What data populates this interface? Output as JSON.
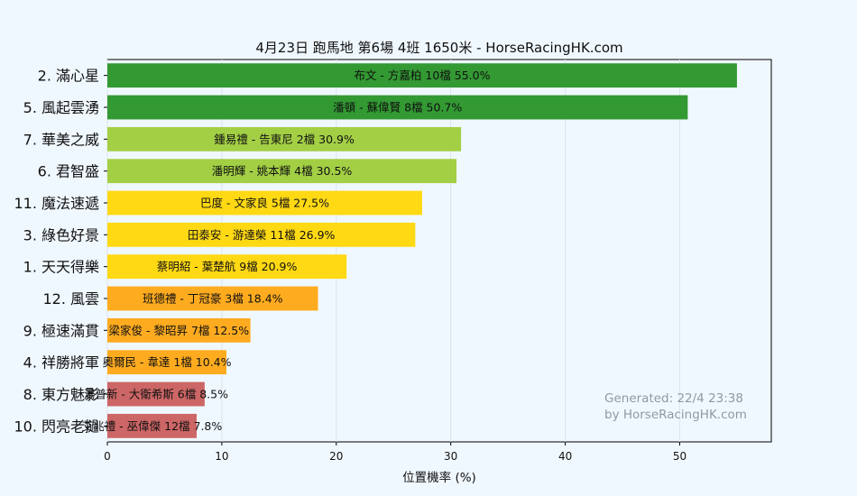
{
  "chart_data": {
    "type": "bar",
    "orientation": "horizontal",
    "title": "4月23日  跑馬地  第6場  4班  1650米 - HorseRacingHK.com",
    "xlabel": "位置機率 (%)",
    "ylabel": "",
    "xlim": [
      0,
      58
    ],
    "xticks": [
      0,
      10,
      20,
      30,
      40,
      50
    ],
    "grid": "vertical",
    "categories": [
      "2. 滿心星",
      "5. 風起雲湧",
      "7. 華美之威",
      "6. 君智盛",
      "11. 魔法速遞",
      "3. 綠色好景",
      "1. 天天得樂",
      "12. 風雲",
      "9. 極速滿貫",
      "4. 祥勝將軍",
      "8. 東方魅影",
      "10. 閃亮老撾"
    ],
    "values": [
      55.0,
      50.7,
      30.9,
      30.5,
      27.5,
      26.9,
      20.9,
      18.4,
      12.5,
      10.4,
      8.5,
      7.8
    ],
    "bar_labels": [
      "布文 - 方嘉柏 10檔  55.0%",
      "潘頓 - 蘇偉賢 8檔  50.7%",
      "鍾易禮 - 告東尼 2檔  30.9%",
      "潘明輝 - 姚本輝 4檔  30.5%",
      "巴度 - 文家良 5檔  27.5%",
      "田泰安 - 游達榮 11檔  26.9%",
      "蔡明紹 - 葉楚航 9檔  20.9%",
      "班德禮 - 丁冠豪 3檔  18.4%",
      "梁家俊 - 黎昭昇 7檔  12.5%",
      "奧爾民 - 韋達 1檔  10.4%",
      "湯普新 - 大衛希斯 6檔  8.5%",
      "艾兆禮 - 巫偉傑 12檔  7.8%"
    ],
    "colors": [
      "#339933",
      "#339933",
      "#a3cf45",
      "#a3cf45",
      "#ffd914",
      "#ffd914",
      "#ffd914",
      "#ffab1f",
      "#ffab1f",
      "#ffab1f",
      "#cd6666",
      "#cd6666"
    ],
    "annotation": [
      "Generated: 22/4 23:38",
      "by HorseRacingHK.com"
    ]
  }
}
